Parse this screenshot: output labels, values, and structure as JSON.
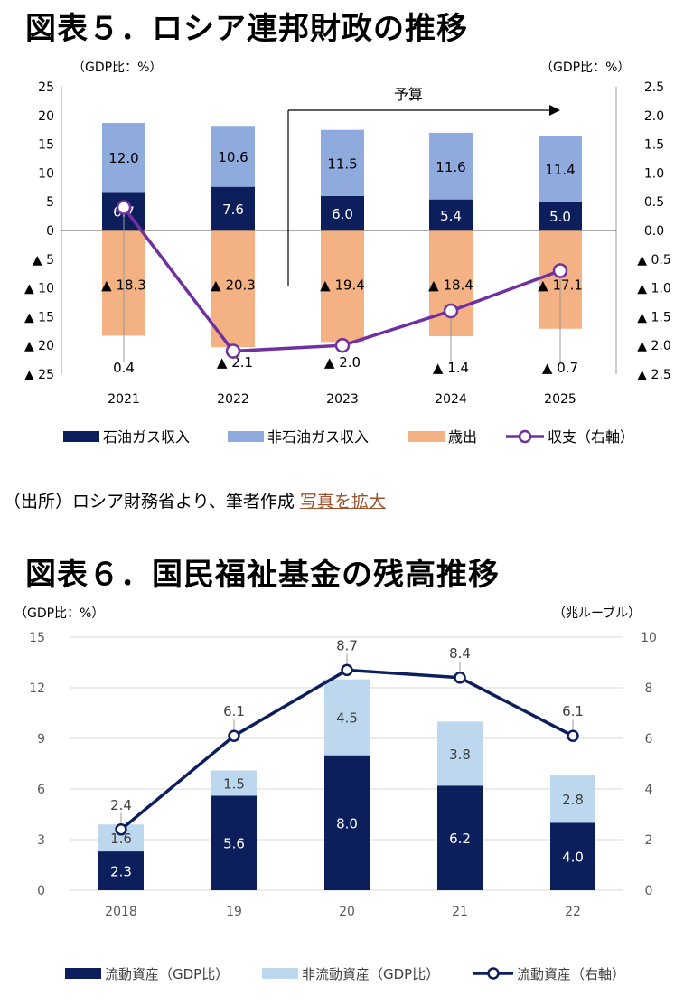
{
  "chart5_title": "図表５．ロシア連邦財政の推移",
  "chart6_title": "図表６．国民福祉基金の残高推移",
  "source_text": "（出所）ロシア財務省より、筆者作成",
  "enlarge_link": "写真を拡大",
  "colors": {
    "oil": "#0c1f5c",
    "nonoil": "#8faadc",
    "spend": "#f4b183",
    "balance": "#7030a0",
    "current": "#0c1f5c",
    "noncurrent": "#bdd7ee"
  },
  "chart_data": [
    {
      "type": "bar",
      "left_unit": "（GDP比：%）",
      "right_unit": "（GDP比：%）",
      "budget_label": "予算",
      "categories": [
        "2021",
        "2022",
        "2023",
        "2024",
        "2025"
      ],
      "left_ticks": [
        "25",
        "20",
        "15",
        "10",
        "5",
        "0",
        "▲ 5",
        "▲ 10",
        "▲ 15",
        "▲ 20",
        "▲ 25"
      ],
      "right_ticks": [
        "2.5",
        "2.0",
        "1.5",
        "1.0",
        "0.5",
        "0.0",
        "▲ 0.5",
        "▲ 1.0",
        "▲ 1.5",
        "▲ 2.0",
        "▲ 2.5"
      ],
      "ylim": [
        -25,
        25
      ],
      "y2lim": [
        -2.5,
        2.5
      ],
      "series": [
        {
          "name": "石油ガス収入",
          "values": [
            6.7,
            7.6,
            6.0,
            5.4,
            5.0
          ],
          "labels": [
            "6.7",
            "7.6",
            "6.0",
            "5.4",
            "5.0"
          ]
        },
        {
          "name": "非石油ガス収入",
          "values": [
            12.0,
            10.6,
            11.5,
            11.6,
            11.4
          ],
          "labels": [
            "12.0",
            "10.6",
            "11.5",
            "11.6",
            "11.4"
          ]
        },
        {
          "name": "歳出",
          "values": [
            -18.3,
            -20.3,
            -19.4,
            -18.4,
            -17.1
          ],
          "labels": [
            "▲ 18.3",
            "▲ 20.3",
            "▲ 19.4",
            "▲ 18.4",
            "▲ 17.1"
          ]
        },
        {
          "name": "収支（右軸）",
          "values": [
            0.4,
            -2.1,
            -2.0,
            -1.4,
            -0.7
          ],
          "labels": [
            "0.4",
            "▲ 2.1",
            "▲ 2.0",
            "▲ 1.4",
            "▲ 0.7"
          ]
        }
      ]
    },
    {
      "type": "bar",
      "left_unit": "（GDP比：%）",
      "right_unit": "（兆ルーブル）",
      "categories": [
        "2018",
        "19",
        "20",
        "21",
        "22"
      ],
      "left_ticks": [
        "15",
        "12",
        "9",
        "6",
        "3",
        "0"
      ],
      "right_ticks": [
        "10",
        "8",
        "6",
        "4",
        "2",
        "0"
      ],
      "ylim": [
        0,
        15
      ],
      "y2lim": [
        0,
        10
      ],
      "series": [
        {
          "name": "流動資産（GDP比）",
          "values": [
            2.3,
            5.6,
            8.0,
            6.2,
            4.0
          ],
          "labels": [
            "2.3",
            "5.6",
            "8.0",
            "6.2",
            "4.0"
          ]
        },
        {
          "name": "非流動資産（GDP比）",
          "values": [
            1.6,
            1.5,
            4.5,
            3.8,
            2.8
          ],
          "labels": [
            "1.6",
            "1.5",
            "4.5",
            "3.8",
            "2.8"
          ]
        },
        {
          "name": "流動資産（右軸）",
          "values": [
            2.4,
            6.1,
            8.7,
            8.4,
            6.1
          ],
          "labels": [
            "2.4",
            "6.1",
            "8.7",
            "8.4",
            "6.1"
          ]
        }
      ]
    }
  ]
}
